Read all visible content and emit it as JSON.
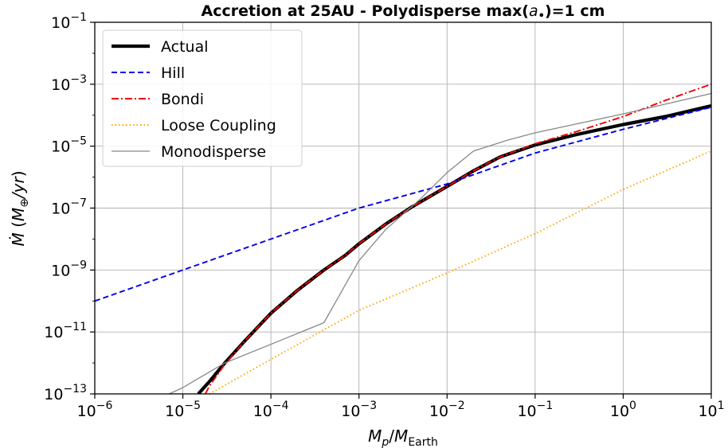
{
  "chart_data": {
    "type": "line",
    "title": "Accretion at 25AU - Polydisperse max(a•)=1 cm",
    "xlabel": "Mp/MEarth",
    "ylabel": "Ṁ (M⊕/yr)",
    "xscale": "log",
    "yscale": "log",
    "xlim": [
      1e-06,
      10
    ],
    "ylim": [
      1e-13,
      0.1
    ],
    "grid": true,
    "legend_position": "top-left",
    "x_ticks": [
      {
        "base": "10",
        "exp": "−6"
      },
      {
        "base": "10",
        "exp": "−5"
      },
      {
        "base": "10",
        "exp": "−4"
      },
      {
        "base": "10",
        "exp": "−3"
      },
      {
        "base": "10",
        "exp": "−2"
      },
      {
        "base": "10",
        "exp": "−1"
      },
      {
        "base": "10",
        "exp": "0"
      },
      {
        "base": "10",
        "exp": "1"
      }
    ],
    "y_ticks": [
      {
        "base": "10",
        "exp": "−13"
      },
      {
        "base": "10",
        "exp": "−11"
      },
      {
        "base": "10",
        "exp": "−9"
      },
      {
        "base": "10",
        "exp": "−7"
      },
      {
        "base": "10",
        "exp": "−5"
      },
      {
        "base": "10",
        "exp": "−3"
      },
      {
        "base": "10",
        "exp": "−1"
      }
    ],
    "series": [
      {
        "name": "Actual",
        "color": "#000000",
        "style": "solid-thick",
        "x": [
          1.5e-05,
          2e-05,
          3e-05,
          5e-05,
          0.0001,
          0.0002,
          0.0004,
          0.0007,
          0.001,
          0.002,
          0.004,
          0.01,
          0.02,
          0.04,
          0.1,
          0.3,
          1,
          3,
          10
        ],
        "y": [
          1e-13,
          2.5e-13,
          1e-12,
          5e-12,
          4e-11,
          2.2e-10,
          1e-09,
          3e-09,
          7e-09,
          3e-08,
          1.1e-07,
          5e-07,
          1.6e-06,
          4.5e-06,
          1.1e-05,
          2.4e-05,
          5e-05,
          9e-05,
          0.0002
        ]
      },
      {
        "name": "Hill",
        "color": "#0000ee",
        "style": "dashed",
        "x": [
          1e-06,
          1e-05,
          0.0001,
          0.001,
          0.01,
          0.1,
          1,
          10
        ],
        "y": [
          1e-10,
          1e-09,
          1e-08,
          1e-07,
          6e-07,
          6e-06,
          3.5e-05,
          0.00018
        ]
      },
      {
        "name": "Bondi",
        "color": "#ee0000",
        "style": "dashdot",
        "x": [
          1.8e-05,
          2e-05,
          3e-05,
          5e-05,
          0.0001,
          0.0002,
          0.0004,
          0.0007,
          0.001,
          0.002,
          0.004,
          0.01,
          0.02,
          0.04,
          0.1,
          0.3,
          1,
          3,
          10
        ],
        "y": [
          1e-13,
          1.8e-13,
          9e-13,
          5e-12,
          4e-11,
          2.2e-10,
          1e-09,
          3e-09,
          7e-09,
          3e-08,
          1.1e-07,
          5e-07,
          1.6e-06,
          4.5e-06,
          1.2e-05,
          3e-05,
          9e-05,
          0.0003,
          0.001
        ]
      },
      {
        "name": "Loose Coupling",
        "color": "#ffa500",
        "style": "dotted",
        "x": [
          2e-05,
          0.0001,
          0.001,
          0.01,
          0.1,
          1,
          10
        ],
        "y": [
          1e-13,
          1.3e-12,
          5e-11,
          8e-10,
          1.5e-08,
          4e-07,
          7e-06
        ]
      },
      {
        "name": "Monodisperse",
        "color": "#888888",
        "style": "solid-thin",
        "x": [
          7e-06,
          1e-05,
          3e-05,
          0.0001,
          0.0004,
          0.001,
          0.002,
          0.005,
          0.01,
          0.02,
          0.05,
          0.1,
          1,
          10
        ],
        "y": [
          1e-13,
          1.6e-13,
          1e-12,
          4e-12,
          2e-11,
          2e-09,
          2e-08,
          2e-07,
          1.4e-06,
          7e-06,
          1.6e-05,
          2.7e-05,
          0.00011,
          0.0005
        ]
      }
    ]
  }
}
